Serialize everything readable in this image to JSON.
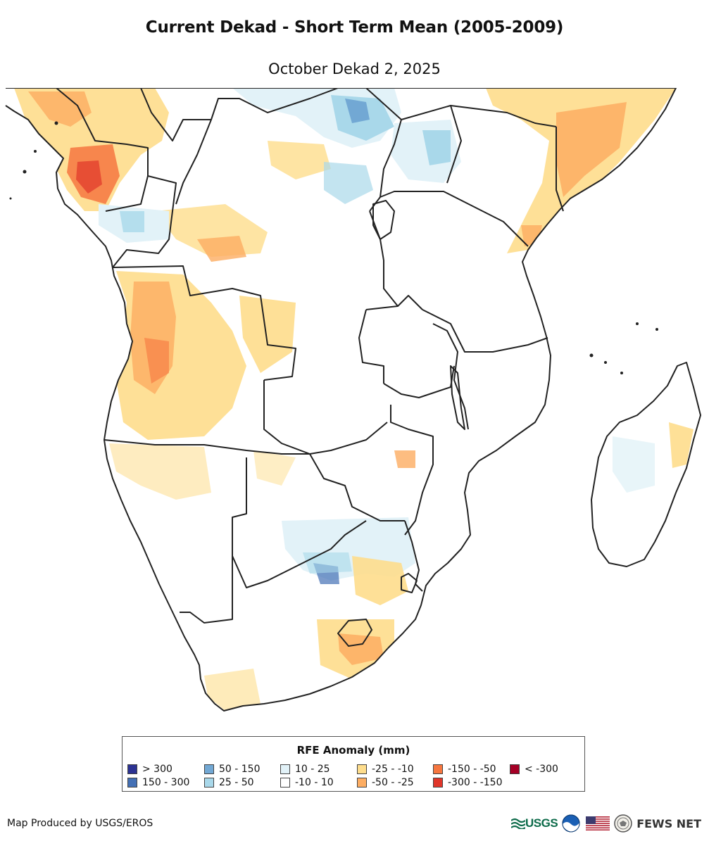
{
  "title": "Current Dekad - Short Term Mean (2005-2009)",
  "subtitle": "October Dekad 2, 2025",
  "legend": {
    "title": "RFE Anomaly (mm)",
    "items": [
      {
        "label": "> 300",
        "color": "#2c3293"
      },
      {
        "label": "150 - 300",
        "color": "#4470b5"
      },
      {
        "label": "50 - 150",
        "color": "#72a8d4"
      },
      {
        "label": "25 - 50",
        "color": "#a9d8ea"
      },
      {
        "label": "10 - 25",
        "color": "#e2f2f8"
      },
      {
        "label": "-10 - 10",
        "color": "#ffffff"
      },
      {
        "label": "-25 - -10",
        "color": "#fedd8c"
      },
      {
        "label": "-50 - -25",
        "color": "#fdad62"
      },
      {
        "label": "-150 - -50",
        "color": "#f6763f"
      },
      {
        "label": "-300 - -150",
        "color": "#e0362a"
      },
      {
        "label": "< -300",
        "color": "#a50026"
      }
    ]
  },
  "credit": "Map Produced by USGS/EROS",
  "logos": {
    "usgs": "USGS",
    "fews": "FEWS NET"
  }
}
